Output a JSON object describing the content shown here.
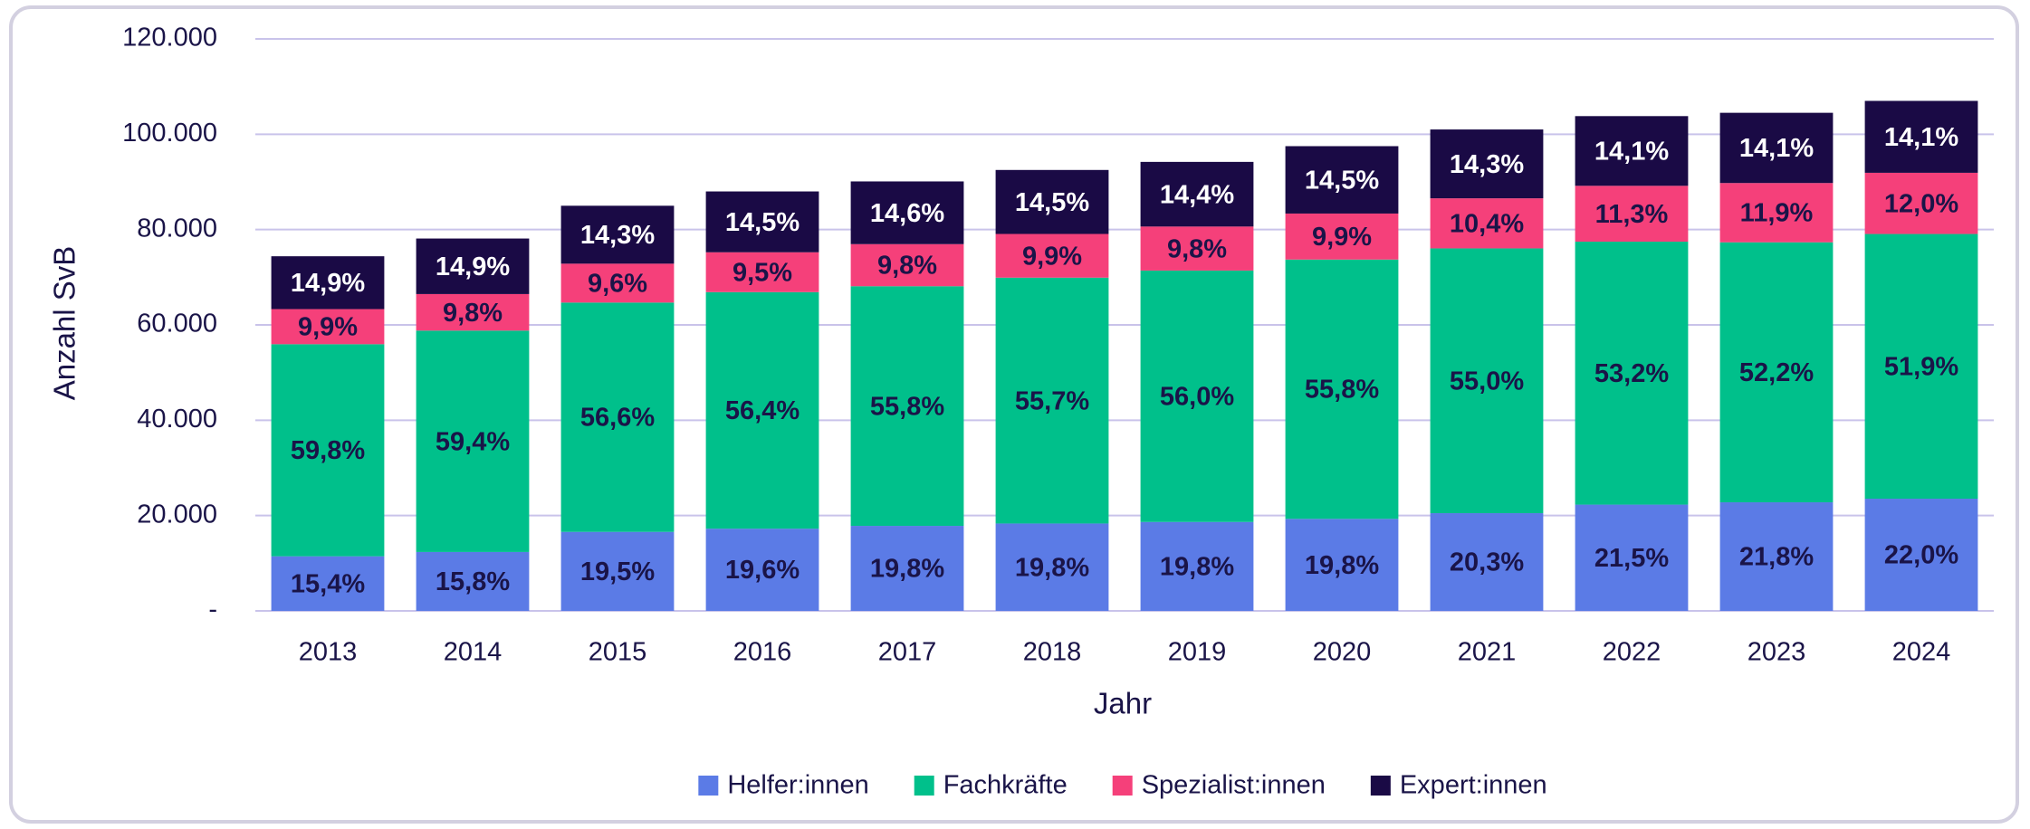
{
  "chart_data": {
    "type": "stacked_bar",
    "x_label": "Jahr",
    "y_label": "Anzahl SvB",
    "categories": [
      "2013",
      "2014",
      "2015",
      "2016",
      "2017",
      "2018",
      "2019",
      "2020",
      "2021",
      "2022",
      "2023",
      "2024"
    ],
    "series": [
      {
        "name": "Helfer:innen",
        "color": "#5b7be6",
        "label_color": "#1a1448",
        "values": [
          11458,
          12356,
          16575,
          17248,
          17840,
          18335,
          18652,
          19305,
          20503,
          22296,
          22781,
          23540
        ],
        "value_labels": [
          "15,4%",
          "15,8%",
          "19,5%",
          "19,6%",
          "19,8%",
          "19,8%",
          "19,8%",
          "19,8%",
          "20,3%",
          "21,5%",
          "21,8%",
          "22,0%"
        ]
      },
      {
        "name": "Fachkräfte",
        "color": "#00c08b",
        "label_color": "#1a1448",
        "values": [
          44491,
          46451,
          48110,
          49632,
          50276,
          51578,
          52752,
          54405,
          55550,
          55168,
          54549,
          55533
        ],
        "value_labels": [
          "59,8%",
          "59,4%",
          "56,6%",
          "56,4%",
          "55,8%",
          "55,7%",
          "56,0%",
          "55,8%",
          "55,0%",
          "53,2%",
          "52,2%",
          "51,9%"
        ]
      },
      {
        "name": "Spezialist:innen",
        "color": "#f5407a",
        "label_color": "#1a1448",
        "values": [
          7366,
          7664,
          8160,
          8360,
          8830,
          9167,
          9232,
          9653,
          10504,
          11718,
          12436,
          12840
        ],
        "value_labels": [
          "9,9%",
          "9,8%",
          "9,6%",
          "9,5%",
          "9,8%",
          "9,9%",
          "9,8%",
          "9,9%",
          "10,4%",
          "11,3%",
          "11,9%",
          "12,0%"
        ]
      },
      {
        "name": "Expert:innen",
        "color": "#1a0a45",
        "label_color": "#ffffff",
        "values": [
          11086,
          11652,
          12155,
          12760,
          13155,
          13427,
          13565,
          14138,
          14443,
          14622,
          14735,
          15087
        ],
        "value_labels": [
          "14,9%",
          "14,9%",
          "14,3%",
          "14,5%",
          "14,6%",
          "14,5%",
          "14,4%",
          "14,5%",
          "14,3%",
          "14,1%",
          "14,1%",
          "14,1%"
        ]
      }
    ],
    "ylim": [
      0,
      120000
    ],
    "yticks": [
      {
        "value": 0,
        "label": "-"
      },
      {
        "value": 20000,
        "label": "20.000"
      },
      {
        "value": 40000,
        "label": "40.000"
      },
      {
        "value": 60000,
        "label": "60.000"
      },
      {
        "value": 80000,
        "label": "80.000"
      },
      {
        "value": 100000,
        "label": "100.000"
      },
      {
        "value": 120000,
        "label": "120.000"
      }
    ],
    "grid": true,
    "legend": "bottom"
  }
}
